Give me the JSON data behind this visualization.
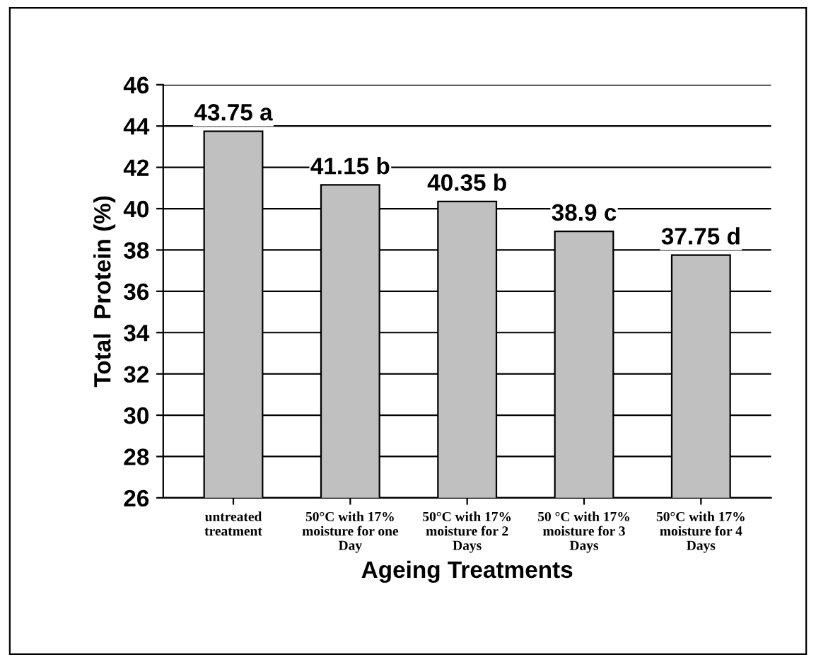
{
  "chart_data": {
    "type": "bar",
    "xlabel": "Ageing Treatments",
    "ylabel": "Total  Protein (%)",
    "categories": [
      "untreated\ntreatment",
      "50°C with 17%\nmoisture for one\nDay",
      "50°C with 17%\nmoisture for 2\nDays",
      "50 °C with 17%\nmoisture for 3\nDays",
      "50°C with 17%\nmoisture for 4\nDays"
    ],
    "values": [
      43.75,
      41.15,
      40.35,
      38.9,
      37.75
    ],
    "value_labels": [
      "43.75 a",
      "41.15 b",
      "40.35 b",
      "38.9 c",
      "37.75 d"
    ],
    "color": "#c0c0c0",
    "ylim": [
      26,
      46
    ],
    "yticks": [
      26,
      28,
      30,
      32,
      34,
      36,
      38,
      40,
      42,
      44,
      46
    ],
    "grid": "y",
    "legend": false
  }
}
